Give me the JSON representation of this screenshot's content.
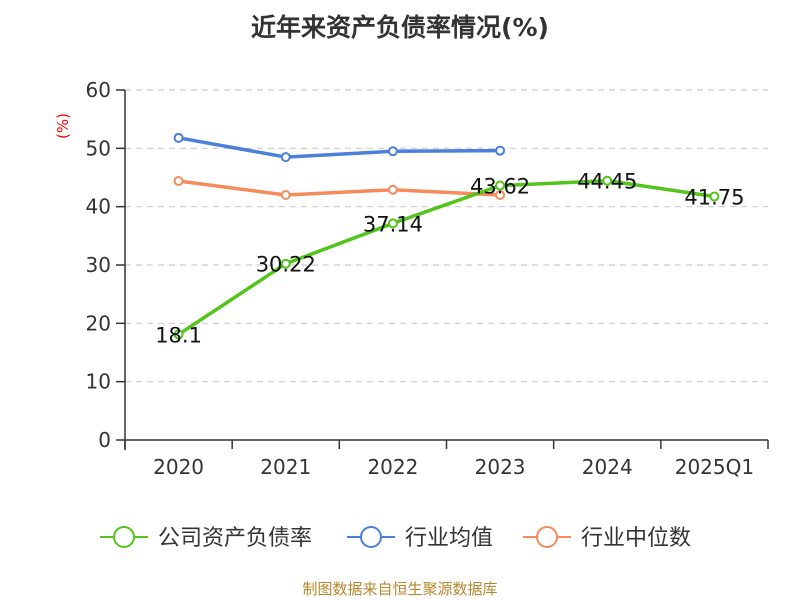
{
  "title": "近年来资产负债率情况(%)",
  "y_unit_label": "(%)",
  "source": "制图数据来自恒生聚源数据库",
  "colors": {
    "company": "#52c41a",
    "industry_avg": "#4a7fdc",
    "industry_median": "#f58b5a",
    "axis": "#333333",
    "grid": "#cccccc",
    "unit_label": "#ff0000",
    "source": "#b8862b"
  },
  "legend": [
    {
      "name": "公司资产负债率",
      "color": "#52c41a"
    },
    {
      "name": "行业均值",
      "color": "#4a7fdc"
    },
    {
      "name": "行业中位数",
      "color": "#f58b5a"
    }
  ],
  "chart_data": {
    "type": "line",
    "title": "近年来资产负债率情况(%)",
    "xlabel": "",
    "ylabel": "(%)",
    "categories": [
      "2020",
      "2021",
      "2022",
      "2023",
      "2024",
      "2025Q1"
    ],
    "ylim": [
      0,
      60
    ],
    "yticks": [
      0,
      10,
      20,
      30,
      40,
      50,
      60
    ],
    "grid": true,
    "legend_position": "bottom",
    "series": [
      {
        "name": "公司资产负债率",
        "values": [
          18.1,
          30.22,
          37.14,
          43.62,
          44.45,
          41.75
        ],
        "labels": [
          "18.1",
          "30.22",
          "37.14",
          "43.62",
          "44.45",
          "41.75"
        ]
      },
      {
        "name": "行业均值",
        "values": [
          51.8,
          48.5,
          49.5,
          49.6,
          null,
          null
        ]
      },
      {
        "name": "行业中位数",
        "values": [
          44.4,
          42.0,
          42.9,
          42.0,
          null,
          null
        ]
      }
    ]
  }
}
